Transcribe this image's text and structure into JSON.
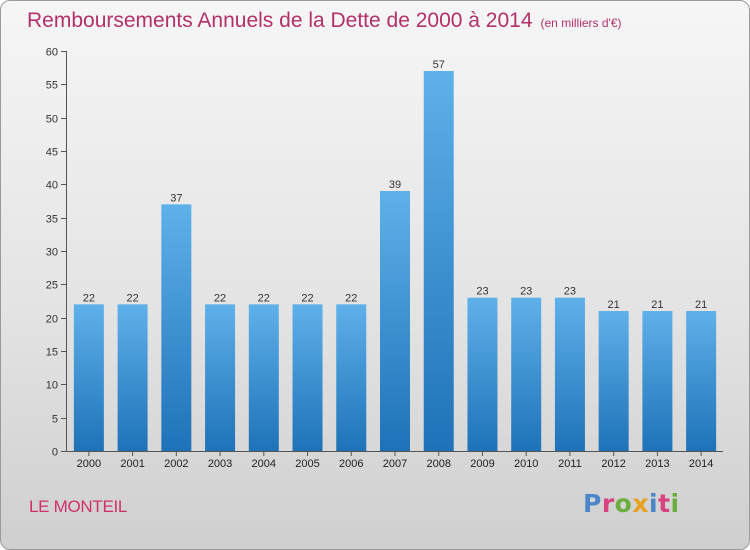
{
  "title": "Remboursements Annuels de la Dette de 2000 à 2014",
  "title_unit": "(en milliers d'€)",
  "commune": "LE MONTEIL",
  "logo": {
    "text": "Proxiti",
    "letter_colors": [
      "#4a86c8",
      "#d9427e",
      "#6cae3c",
      "#e8a020",
      "#4a86c8",
      "#d9427e",
      "#6cae3c"
    ]
  },
  "colors": {
    "bar_top": "#5fb1ea",
    "bar_bottom": "#1e72b8",
    "title": "#b4306a",
    "commune": "#d0306a"
  },
  "chart_data": {
    "type": "bar",
    "title": "Remboursements Annuels de la Dette de 2000 à 2014",
    "xlabel": "",
    "ylabel": "",
    "categories": [
      "2000",
      "2001",
      "2002",
      "2003",
      "2004",
      "2005",
      "2006",
      "2007",
      "2008",
      "2009",
      "2010",
      "2011",
      "2012",
      "2013",
      "2014"
    ],
    "values": [
      22,
      22,
      37,
      22,
      22,
      22,
      22,
      39,
      57,
      23,
      23,
      23,
      21,
      21,
      21
    ],
    "ylim": [
      0,
      60
    ],
    "yticks": [
      0,
      5,
      10,
      15,
      20,
      25,
      30,
      35,
      40,
      45,
      50,
      55,
      60
    ],
    "grid": false,
    "data_labels": true
  }
}
